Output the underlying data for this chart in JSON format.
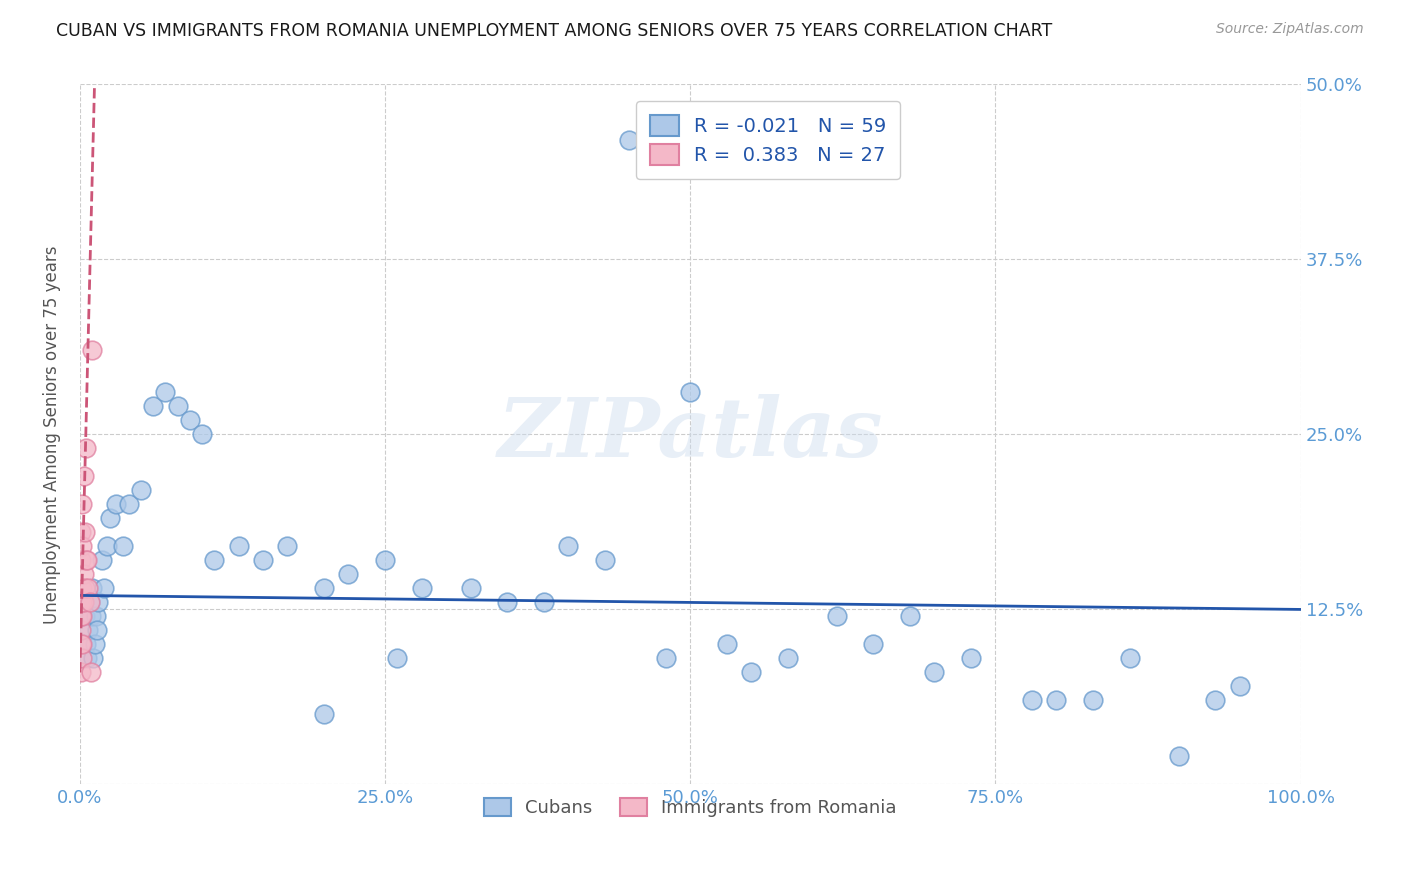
{
  "title": "CUBAN VS IMMIGRANTS FROM ROMANIA UNEMPLOYMENT AMONG SENIORS OVER 75 YEARS CORRELATION CHART",
  "source": "Source: ZipAtlas.com",
  "ylabel": "Unemployment Among Seniors over 75 years",
  "xlim": [
    0,
    1.0
  ],
  "ylim": [
    0,
    0.5
  ],
  "xticks": [
    0.0,
    0.25,
    0.5,
    0.75,
    1.0
  ],
  "xticklabels": [
    "0.0%",
    "25.0%",
    "50.0%",
    "75.0%",
    "100.0%"
  ],
  "yticks": [
    0.0,
    0.125,
    0.25,
    0.375,
    0.5
  ],
  "yticklabels_left": [
    "",
    "",
    "",
    "",
    ""
  ],
  "yticklabels_right": [
    "",
    "12.5%",
    "25.0%",
    "37.5%",
    "50.0%"
  ],
  "blue_face": "#adc8e8",
  "blue_edge": "#6699cc",
  "blue_line": "#2255aa",
  "pink_face": "#f4b8c8",
  "pink_edge": "#e080a0",
  "pink_line": "#cc5577",
  "r_blue": -0.021,
  "n_blue": 59,
  "r_pink": 0.383,
  "n_pink": 27,
  "bg": "#ffffff",
  "grid_color": "#cccccc",
  "title_color": "#1a1a1a",
  "label_color": "#555555",
  "tick_color": "#5b9bd5",
  "watermark": "ZIPatlas",
  "blue_x": [
    0.003,
    0.004,
    0.005,
    0.006,
    0.007,
    0.008,
    0.009,
    0.01,
    0.011,
    0.012,
    0.013,
    0.014,
    0.015,
    0.018,
    0.02,
    0.022,
    0.025,
    0.03,
    0.035,
    0.04,
    0.05,
    0.06,
    0.07,
    0.08,
    0.09,
    0.1,
    0.11,
    0.13,
    0.15,
    0.17,
    0.2,
    0.22,
    0.25,
    0.28,
    0.32,
    0.35,
    0.38,
    0.4,
    0.43,
    0.48,
    0.5,
    0.53,
    0.55,
    0.58,
    0.62,
    0.65,
    0.68,
    0.7,
    0.73,
    0.78,
    0.8,
    0.83,
    0.86,
    0.9,
    0.93,
    0.95,
    0.2,
    0.26,
    0.45
  ],
  "blue_y": [
    0.13,
    0.12,
    0.1,
    0.09,
    0.11,
    0.13,
    0.12,
    0.14,
    0.09,
    0.1,
    0.12,
    0.11,
    0.13,
    0.16,
    0.14,
    0.17,
    0.19,
    0.2,
    0.17,
    0.2,
    0.21,
    0.27,
    0.28,
    0.27,
    0.26,
    0.25,
    0.16,
    0.17,
    0.16,
    0.17,
    0.14,
    0.15,
    0.16,
    0.14,
    0.14,
    0.13,
    0.13,
    0.17,
    0.16,
    0.09,
    0.28,
    0.1,
    0.08,
    0.09,
    0.12,
    0.1,
    0.12,
    0.08,
    0.09,
    0.06,
    0.06,
    0.06,
    0.09,
    0.02,
    0.06,
    0.07,
    0.05,
    0.09,
    0.46
  ],
  "pink_x": [
    0.001,
    0.001,
    0.001,
    0.001,
    0.001,
    0.001,
    0.001,
    0.001,
    0.002,
    0.002,
    0.002,
    0.002,
    0.002,
    0.002,
    0.002,
    0.003,
    0.003,
    0.003,
    0.004,
    0.004,
    0.005,
    0.005,
    0.006,
    0.007,
    0.008,
    0.009,
    0.01
  ],
  "pink_y": [
    0.1,
    0.11,
    0.12,
    0.13,
    0.14,
    0.16,
    0.18,
    0.08,
    0.09,
    0.1,
    0.12,
    0.13,
    0.14,
    0.17,
    0.2,
    0.13,
    0.15,
    0.22,
    0.14,
    0.18,
    0.16,
    0.24,
    0.16,
    0.14,
    0.13,
    0.08,
    0.31
  ],
  "blue_line_x": [
    0.0,
    1.0
  ],
  "blue_line_y": [
    0.135,
    0.125
  ],
  "pink_line_x": [
    0.0,
    0.012
  ],
  "pink_line_y": [
    0.08,
    0.5
  ]
}
